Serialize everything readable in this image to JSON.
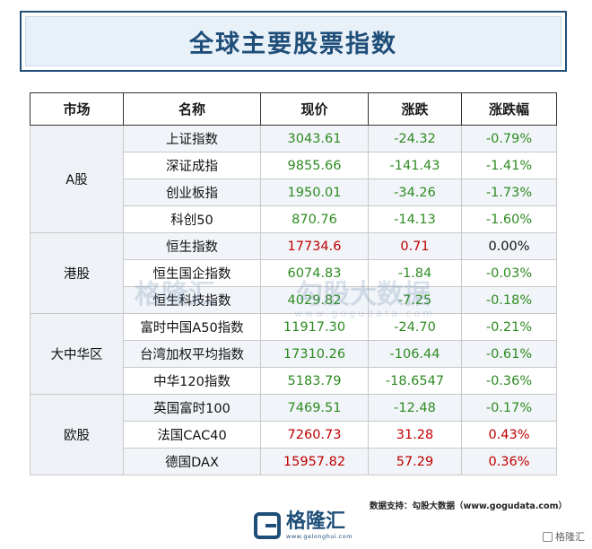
{
  "title": "全球主要股票指数",
  "headers": [
    "市场",
    "名称",
    "现价",
    "涨跌",
    "涨跌幅"
  ],
  "groups": [
    {
      "market": "A股",
      "rows": [
        {
          "name": "上证指数",
          "price": "3043.61",
          "change": "-24.32",
          "pct": "-0.79%",
          "dir": "down"
        },
        {
          "name": "深证成指",
          "price": "9855.66",
          "change": "-141.43",
          "pct": "-1.41%",
          "dir": "down"
        },
        {
          "name": "创业板指",
          "price": "1950.01",
          "change": "-34.26",
          "pct": "-1.73%",
          "dir": "down"
        },
        {
          "name": "科创50",
          "price": "870.76",
          "change": "-14.13",
          "pct": "-1.60%",
          "dir": "down"
        }
      ]
    },
    {
      "market": "港股",
      "rows": [
        {
          "name": "恒生指数",
          "price": "17734.6",
          "change": "0.71",
          "pct": "0.00%",
          "dir": "up"
        },
        {
          "name": "恒生国企指数",
          "price": "6074.83",
          "change": "-1.84",
          "pct": "-0.03%",
          "dir": "down"
        },
        {
          "name": "恒生科技指数",
          "price": "4029.82",
          "change": "-7.25",
          "pct": "-0.18%",
          "dir": "down"
        }
      ]
    },
    {
      "market": "大中华区",
      "rows": [
        {
          "name": "富时中国A50指数",
          "price": "11917.30",
          "change": "-24.70",
          "pct": "-0.21%",
          "dir": "down"
        },
        {
          "name": "台湾加权平均指数",
          "price": "17310.26",
          "change": "-106.44",
          "pct": "-0.61%",
          "dir": "down"
        },
        {
          "name": "中华120指数",
          "price": "5183.79",
          "change": "-18.6547",
          "pct": "-0.36%",
          "dir": "down"
        }
      ]
    },
    {
      "market": "欧股",
      "rows": [
        {
          "name": "英国富时100",
          "price": "7469.51",
          "change": "-12.48",
          "pct": "-0.17%",
          "dir": "down"
        },
        {
          "name": "法国CAC40",
          "price": "7260.73",
          "change": "31.28",
          "pct": "0.43%",
          "dir": "up"
        },
        {
          "name": "德国DAX",
          "price": "15957.82",
          "change": "57.29",
          "pct": "0.36%",
          "dir": "up"
        }
      ]
    }
  ],
  "colors": {
    "up": "#c00000",
    "down": "#2e8b22",
    "title": "#1f4e79"
  },
  "watermark": {
    "brand": "格隆汇",
    "partner": "勾股大数据",
    "url": "www.gogudata.com"
  },
  "source": "数据支持：勾股大数据（www.gogudata.com）",
  "logo": {
    "name": "格隆汇",
    "url": "www.gelonghui.com"
  },
  "corner": "格隆汇"
}
